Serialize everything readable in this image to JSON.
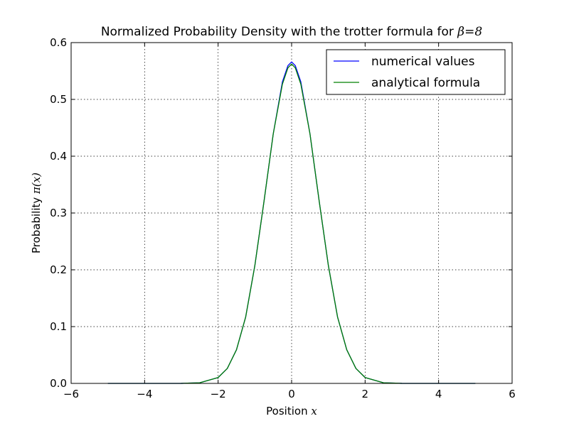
{
  "chart_data": {
    "type": "line",
    "title_prefix": "Normalized Probability Density with the trotter formula for ",
    "title_math": "β=8",
    "xlabel_prefix": "Position ",
    "xlabel_math": "x",
    "ylabel_prefix": "Probability ",
    "ylabel_math": "π(x)",
    "xlim": [
      -6,
      6
    ],
    "ylim": [
      0,
      0.6
    ],
    "xticks": [
      -6,
      -4,
      -2,
      0,
      2,
      4,
      6
    ],
    "xtick_labels": [
      "−6",
      "−4",
      "−2",
      "0",
      "2",
      "4",
      "6"
    ],
    "yticks": [
      0.0,
      0.1,
      0.2,
      0.3,
      0.4,
      0.5,
      0.6
    ],
    "ytick_labels": [
      "0.0",
      "0.1",
      "0.2",
      "0.3",
      "0.4",
      "0.5",
      "0.6"
    ],
    "grid": true,
    "legend_position": "top-right",
    "series": [
      {
        "name": "numerical values",
        "color": "#0000ff",
        "x": [
          -5,
          -4,
          -3,
          -2.5,
          -2,
          -1.75,
          -1.5,
          -1.25,
          -1,
          -0.75,
          -0.5,
          -0.25,
          -0.1,
          0,
          0.1,
          0.25,
          0.5,
          0.75,
          1,
          1.25,
          1.5,
          1.75,
          2,
          2.5,
          3,
          4,
          5
        ],
        "y": [
          0,
          0,
          0.0001,
          0.0011,
          0.0103,
          0.0263,
          0.0593,
          0.117,
          0.2076,
          0.3211,
          0.4393,
          0.531,
          0.5594,
          0.566,
          0.5594,
          0.531,
          0.4393,
          0.3211,
          0.2076,
          0.117,
          0.0593,
          0.0263,
          0.0103,
          0.0011,
          0.0001,
          0,
          0
        ]
      },
      {
        "name": "analytical formula",
        "color": "#008000",
        "x": [
          -5,
          -4,
          -3,
          -2.5,
          -2,
          -1.75,
          -1.5,
          -1.25,
          -1,
          -0.75,
          -0.5,
          -0.25,
          -0.1,
          0,
          0.1,
          0.25,
          0.5,
          0.75,
          1,
          1.25,
          1.5,
          1.75,
          2,
          2.5,
          3,
          4,
          5
        ],
        "y": [
          0,
          0,
          0.0001,
          0.0011,
          0.0103,
          0.0263,
          0.0593,
          0.117,
          0.2076,
          0.3211,
          0.4393,
          0.527,
          0.5555,
          0.5623,
          0.5555,
          0.527,
          0.4393,
          0.3211,
          0.2076,
          0.117,
          0.0593,
          0.0263,
          0.0103,
          0.0011,
          0.0001,
          0,
          0
        ]
      }
    ]
  }
}
